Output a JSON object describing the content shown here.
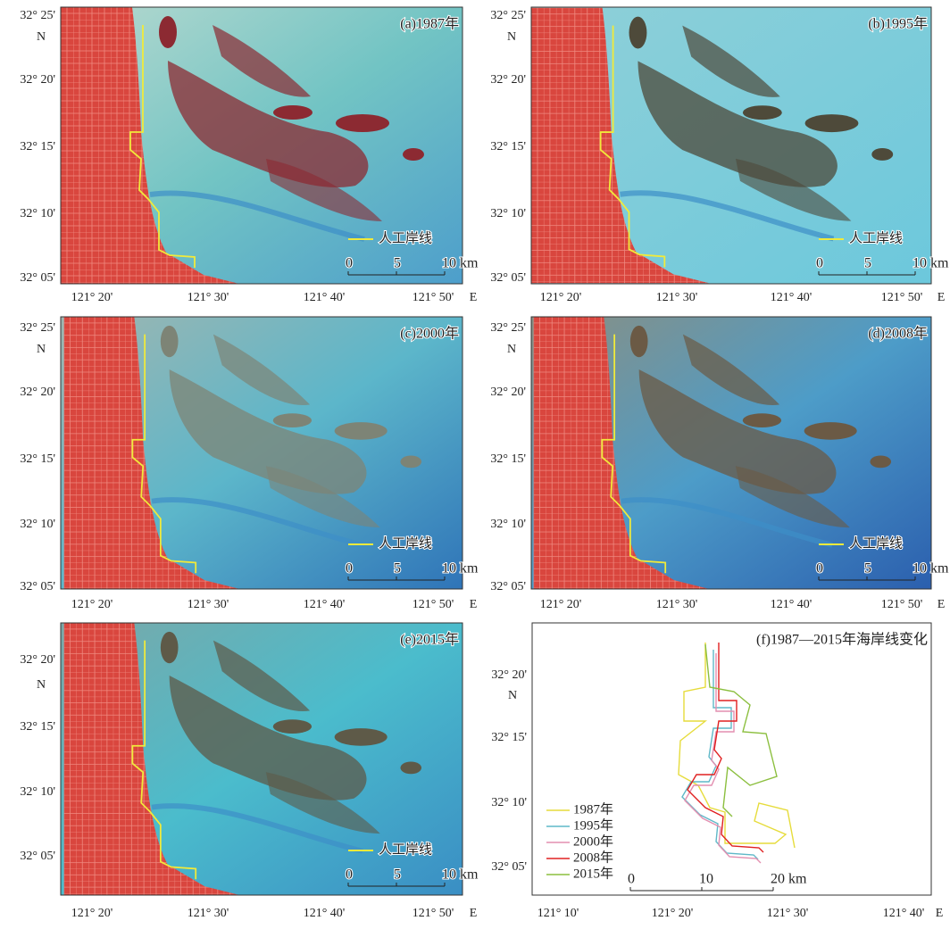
{
  "panels": [
    {
      "label": "(a)1987年",
      "y_labels": [
        "32° 25'",
        "32° 20'",
        "32° 15'",
        "32° 10'",
        "32° 05'"
      ],
      "y_unit": "N",
      "x_labels": [
        "121° 20'",
        "121° 30'",
        "121° 40'",
        "121° 50'"
      ],
      "x_unit": "E",
      "legend": "人工岸线",
      "scale": [
        "0",
        "5",
        "10 km"
      ]
    },
    {
      "label": "(b)1995年",
      "y_labels": [
        "32° 25'",
        "32° 20'",
        "32° 15'",
        "32° 10'",
        "32° 05'"
      ],
      "y_unit": "N",
      "x_labels": [
        "121° 20'",
        "121° 30'",
        "121° 40'",
        "121° 50'"
      ],
      "x_unit": "E",
      "legend": "人工岸线",
      "scale": [
        "0",
        "5",
        "10 km"
      ]
    },
    {
      "label": "(c)2000年",
      "y_labels": [
        "32° 25'",
        "32° 20'",
        "32° 15'",
        "32° 10'",
        "32° 05'"
      ],
      "y_unit": "N",
      "x_labels": [
        "121° 20'",
        "121° 30'",
        "121° 40'",
        "121° 50'"
      ],
      "x_unit": "E",
      "legend": "人工岸线",
      "scale": [
        "0",
        "5",
        "10 km"
      ]
    },
    {
      "label": "(d)2008年",
      "y_labels": [
        "32° 25'",
        "32° 20'",
        "32° 15'",
        "32° 10'",
        "32° 05'"
      ],
      "y_unit": "N",
      "x_labels": [
        "121° 20'",
        "121° 30'",
        "121° 40'",
        "121° 50'"
      ],
      "x_unit": "E",
      "legend": "人工岸线",
      "scale": [
        "0",
        "5",
        "10 km"
      ]
    },
    {
      "label": "(e)2015年",
      "y_labels": [
        "32° 20'",
        "32° 15'",
        "32° 10'",
        "32° 05'"
      ],
      "y_unit": "N",
      "x_labels": [
        "121° 20'",
        "121° 30'",
        "121° 40'",
        "121° 50'"
      ],
      "x_unit": "E",
      "legend": "人工岸线",
      "scale": [
        "0",
        "5",
        "10 km"
      ]
    },
    {
      "label": "(f)1987—2015年海岸线变化",
      "y_labels": [
        "32° 20'",
        "32° 15'",
        "32° 10'",
        "32° 05'"
      ],
      "y_unit": "N",
      "x_labels": [
        "121° 10'",
        "121° 20'",
        "121° 30'",
        "121° 40'"
      ],
      "x_unit": "E",
      "legend": [
        {
          "name": "1987年",
          "color": "#e6dc3c"
        },
        {
          "name": "1995年",
          "color": "#5fb8c8"
        },
        {
          "name": "2000年",
          "color": "#e38fb0"
        },
        {
          "name": "2008年",
          "color": "#e02020"
        },
        {
          "name": "2015年",
          "color": "#8cbf3f"
        }
      ],
      "scale": [
        "0",
        "10",
        "20 km"
      ]
    }
  ]
}
